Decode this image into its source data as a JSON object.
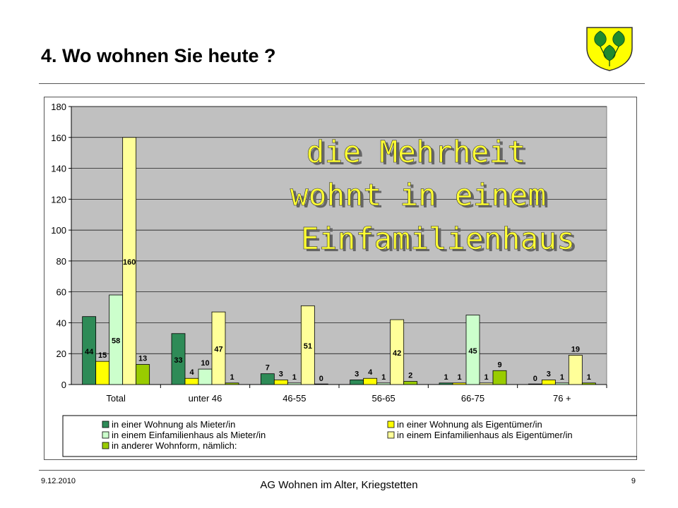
{
  "slide": {
    "title": "4. Wo wohnen Sie heute ?",
    "footer_date": "9.12.2010",
    "footer_center": "AG Wohnen im Alter, Kriegstetten",
    "page_number": "9"
  },
  "annotation": {
    "lines": [
      "die Mehrheit",
      "wohnt in einem",
      "Einfamilienhaus"
    ],
    "color": "#ffff33"
  },
  "chart_data": {
    "type": "bar",
    "categories": [
      "Total",
      "unter 46",
      "46-55",
      "56-65",
      "66-75",
      "76 +"
    ],
    "series": [
      {
        "name": "in einer Wohnung als Mieter/in",
        "color": "#2e8b57",
        "values": [
          44,
          33,
          7,
          3,
          1,
          0
        ]
      },
      {
        "name": "in einer Wohnung als Eigentümer/in",
        "color": "#ffff00",
        "values": [
          15,
          4,
          3,
          4,
          1,
          3
        ]
      },
      {
        "name": "in einem Einfamilienhaus als Mieter/in",
        "color": "#ccffcc",
        "values": [
          58,
          10,
          1,
          1,
          45,
          1
        ]
      },
      {
        "name": "in einem Einfamilienhaus als Eigentümer/in",
        "color": "#ffff99",
        "values": [
          160,
          47,
          51,
          42,
          1,
          19
        ]
      },
      {
        "name": "in anderer Wohnform, nämlich:",
        "color": "#99cc00",
        "values": [
          13,
          1,
          0,
          2,
          9,
          1
        ]
      }
    ],
    "yticks": [
      "0",
      "20",
      "40",
      "60",
      "80",
      "100",
      "120",
      "140",
      "160",
      "180"
    ],
    "ylim": [
      0,
      180
    ],
    "grid": true,
    "legend_position": "bottom",
    "plot_background": "#c0c0c0"
  }
}
